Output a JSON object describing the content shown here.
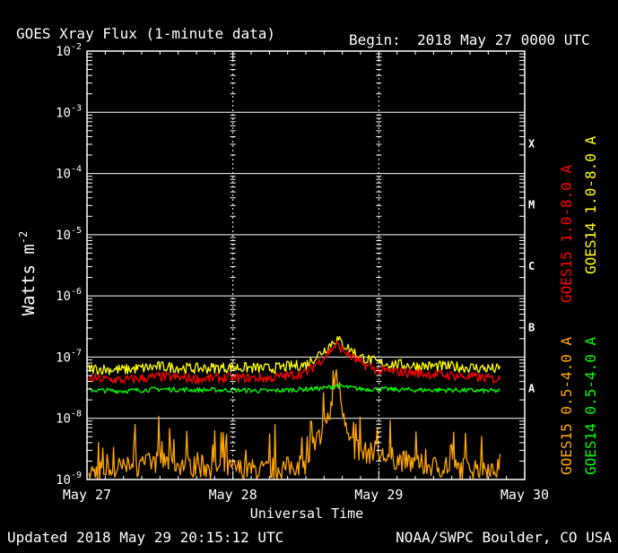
{
  "chart_data": {
    "type": "line",
    "title": "GOES Xray Flux (1-minute data)",
    "begin_label": "Begin:",
    "begin_value": "2018 May 27 0000 UTC",
    "ylabel": "Watts m",
    "ylabel_superscript": "-2",
    "xlabel": "Universal Time",
    "y_scale": "log",
    "ylim": [
      1e-09,
      0.01
    ],
    "y_ticks": [
      {
        "base": "10",
        "exp": "-2"
      },
      {
        "base": "10",
        "exp": "-3"
      },
      {
        "base": "10",
        "exp": "-4"
      },
      {
        "base": "10",
        "exp": "-5"
      },
      {
        "base": "10",
        "exp": "-6"
      },
      {
        "base": "10",
        "exp": "-7"
      },
      {
        "base": "10",
        "exp": "-8"
      },
      {
        "base": "10",
        "exp": "-9"
      }
    ],
    "x_ticks": [
      "May 27",
      "May 28",
      "May 29",
      "May 30"
    ],
    "xlim": [
      "2018-05-27 00:00",
      "2018-05-30 00:00"
    ],
    "flare_classes": [
      "X",
      "M",
      "C",
      "B",
      "A"
    ],
    "grid": true,
    "series": [
      {
        "name": "GOES15 1.0-8.0 A",
        "color": "#ff0000",
        "x": [
          "2018-05-27 00:00",
          "2018-05-27 06:00",
          "2018-05-27 12:00",
          "2018-05-27 18:00",
          "2018-05-28 00:00",
          "2018-05-28 06:00",
          "2018-05-28 12:00",
          "2018-05-28 15:00",
          "2018-05-28 17:00",
          "2018-05-28 19:00",
          "2018-05-28 21:00",
          "2018-05-29 00:00",
          "2018-05-29 06:00",
          "2018-05-29 12:00",
          "2018-05-29 18:00",
          "2018-05-29 20:00"
        ],
        "values": [
          4.5e-08,
          4.2e-08,
          4.8e-08,
          4.4e-08,
          4.6e-08,
          4.5e-08,
          5.5e-08,
          1e-07,
          1.6e-07,
          1.1e-07,
          8e-08,
          6e-08,
          5.5e-08,
          5e-08,
          4.5e-08,
          4.3e-08
        ]
      },
      {
        "name": "GOES14 1.0-8.0 A",
        "color": "#ffff00",
        "x": [
          "2018-05-27 00:00",
          "2018-05-27 06:00",
          "2018-05-27 12:00",
          "2018-05-27 18:00",
          "2018-05-28 00:00",
          "2018-05-28 06:00",
          "2018-05-28 12:00",
          "2018-05-28 15:00",
          "2018-05-28 17:00",
          "2018-05-28 19:00",
          "2018-05-28 21:00",
          "2018-05-29 00:00",
          "2018-05-29 06:00",
          "2018-05-29 12:00",
          "2018-05-29 18:00",
          "2018-05-29 20:00"
        ],
        "values": [
          6.5e-08,
          6.2e-08,
          7e-08,
          6.5e-08,
          6.8e-08,
          6.5e-08,
          7.5e-08,
          1.3e-07,
          2e-07,
          1.4e-07,
          1e-07,
          8e-08,
          7.2e-08,
          7e-08,
          6.5e-08,
          6.3e-08
        ]
      },
      {
        "name": "GOES15 0.5-4.0 A",
        "color": "#ffa500",
        "x": [
          "2018-05-27 00:00",
          "2018-05-27 06:00",
          "2018-05-27 12:00",
          "2018-05-27 18:00",
          "2018-05-28 00:00",
          "2018-05-28 06:00",
          "2018-05-28 12:00",
          "2018-05-28 16:00",
          "2018-05-28 17:00",
          "2018-05-28 18:00",
          "2018-05-28 20:00",
          "2018-05-29 00:00",
          "2018-05-29 06:00",
          "2018-05-29 12:00",
          "2018-05-29 18:00",
          "2018-05-29 20:00"
        ],
        "values": [
          1.3e-09,
          1.5e-09,
          2e-09,
          1.6e-09,
          1.5e-09,
          1.4e-09,
          1.8e-09,
          1.2e-08,
          6e-08,
          1.5e-08,
          3e-09,
          2.5e-09,
          1.8e-09,
          1.5e-09,
          1.6e-09,
          1.4e-09
        ]
      },
      {
        "name": "GOES14 0.5-4.0 A",
        "color": "#00ff00",
        "x": [
          "2018-05-27 00:00",
          "2018-05-27 06:00",
          "2018-05-27 12:00",
          "2018-05-27 18:00",
          "2018-05-28 00:00",
          "2018-05-28 06:00",
          "2018-05-28 12:00",
          "2018-05-28 15:00",
          "2018-05-28 17:00",
          "2018-05-28 19:00",
          "2018-05-28 21:00",
          "2018-05-29 00:00",
          "2018-05-29 06:00",
          "2018-05-29 12:00",
          "2018-05-29 18:00",
          "2018-05-29 20:00"
        ],
        "values": [
          2.9e-08,
          2.8e-08,
          3e-08,
          2.9e-08,
          2.9e-08,
          2.8e-08,
          3e-08,
          3.1e-08,
          3.4e-08,
          3.2e-08,
          3e-08,
          3e-08,
          2.9e-08,
          2.9e-08,
          2.8e-08,
          2.8e-08
        ]
      }
    ]
  },
  "footer": {
    "updated": "Updated 2018 May 29 20:15:12 UTC",
    "source": "NOAA/SWPC Boulder, CO USA"
  }
}
